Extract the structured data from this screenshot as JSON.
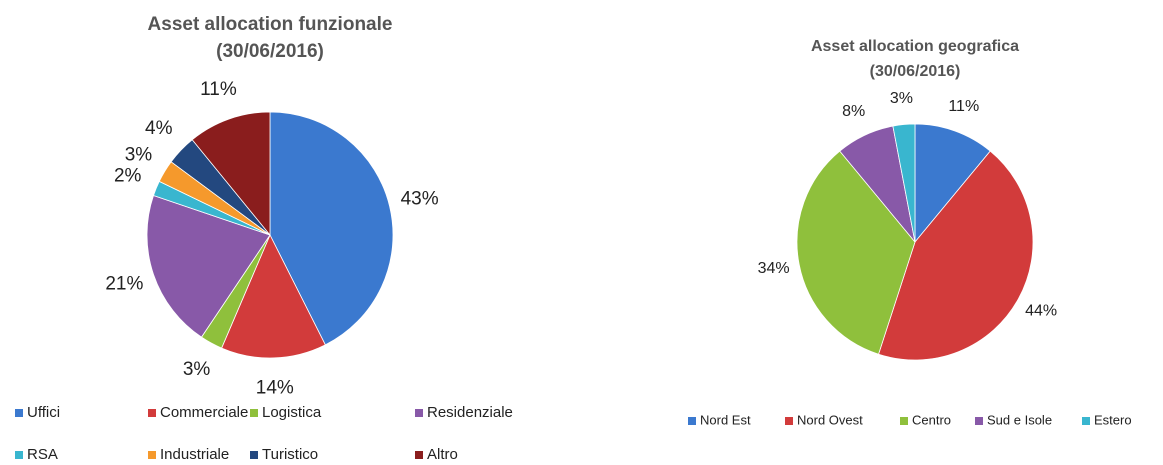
{
  "chart_data": [
    {
      "type": "pie",
      "title": "Asset allocation funzionale",
      "subtitle": "(30/06/2016)",
      "categories": [
        "Uffici",
        "Commerciale",
        "Logistica",
        "Residenziale",
        "RSA",
        "Industriale",
        "Turistico",
        "Altro"
      ],
      "values": [
        43,
        14,
        3,
        21,
        2,
        3,
        4,
        11
      ],
      "value_labels": [
        "43%",
        "14%",
        "3%",
        "21%",
        "2%",
        "3%",
        "4%",
        "11%"
      ],
      "colors": [
        "#3b79cf",
        "#d23b3b",
        "#8fc03c",
        "#8859a8",
        "#39b6cf",
        "#f5992c",
        "#23487f",
        "#8a1d1d"
      ]
    },
    {
      "type": "pie",
      "title": "Asset allocation geografica",
      "subtitle": "(30/06/2016)",
      "categories": [
        "Nord Est",
        "Nord Ovest",
        "Centro",
        "Sud e Isole",
        "Estero"
      ],
      "values": [
        11,
        44,
        34,
        8,
        3
      ],
      "value_labels": [
        "11%",
        "44%",
        "34%",
        "8%",
        "3%"
      ],
      "colors": [
        "#3b79cf",
        "#d23b3b",
        "#8fc03c",
        "#8859a8",
        "#39b6cf"
      ]
    }
  ]
}
